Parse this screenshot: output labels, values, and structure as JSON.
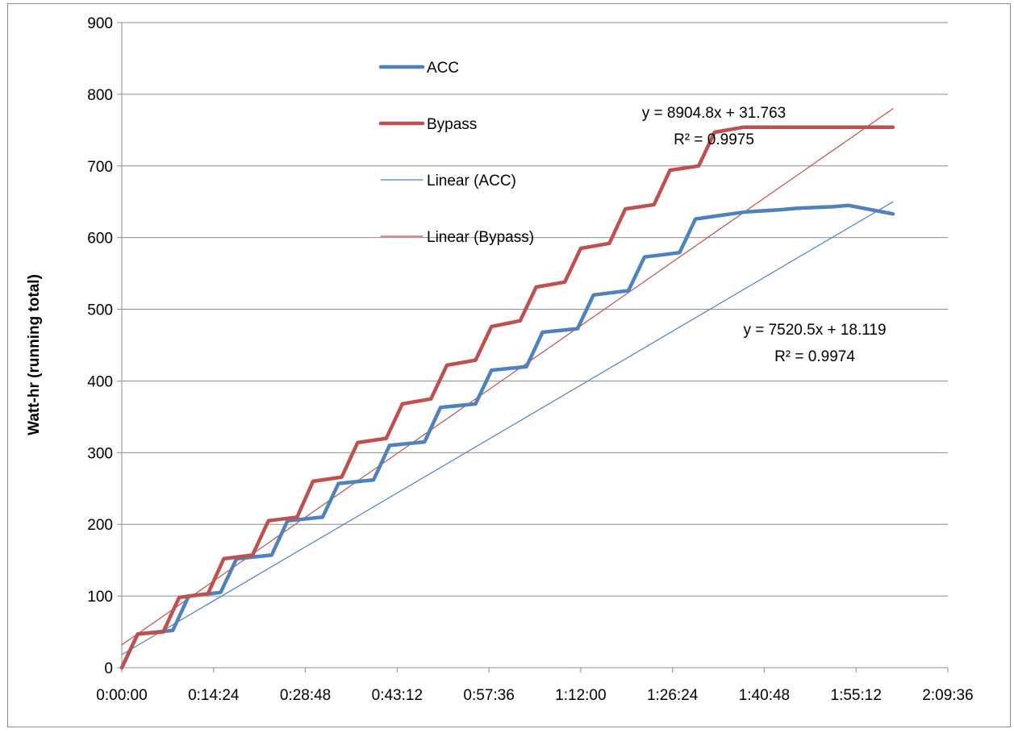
{
  "chart_data": {
    "type": "line",
    "title": "",
    "xlabel": "",
    "ylabel": "Watt-hr (running total)",
    "xlim": [
      "0:00:00",
      "2:09:36"
    ],
    "ylim": [
      0,
      900
    ],
    "x_ticks": [
      "0:00:00",
      "0:14:24",
      "0:28:48",
      "0:43:12",
      "0:57:36",
      "1:12:00",
      "1:26:24",
      "1:40:48",
      "1:55:12",
      "2:09:36"
    ],
    "y_ticks": [
      0,
      100,
      200,
      300,
      400,
      500,
      600,
      700,
      800,
      900
    ],
    "grid": "horizontal",
    "legend_position": "upper-left-inside",
    "series": [
      {
        "name": "ACC",
        "color": "#4f81bd",
        "x": [
          "0:00:00",
          "0:02:30",
          "0:08:00",
          "0:10:30",
          "0:15:30",
          "0:18:00",
          "0:23:30",
          "0:26:00",
          "0:31:30",
          "0:34:00",
          "0:39:30",
          "0:42:00",
          "0:47:30",
          "0:50:00",
          "0:55:30",
          "0:58:00",
          "1:03:30",
          "1:06:00",
          "1:11:30",
          "1:14:00",
          "1:19:30",
          "1:22:00",
          "1:27:30",
          "1:30:00",
          "1:35:30",
          "1:38:00",
          "1:43:30",
          "1:46:00",
          "1:51:30",
          "1:54:00",
          "2:01:00"
        ],
        "values": [
          0,
          47,
          52,
          100,
          105,
          152,
          157,
          205,
          210,
          257,
          262,
          310,
          315,
          363,
          368,
          415,
          420,
          468,
          473,
          520,
          526,
          573,
          579,
          626,
          633,
          636,
          639,
          641,
          643,
          645,
          633
        ]
      },
      {
        "name": "Bypass",
        "color": "#c0504d",
        "x": [
          "0:00:00",
          "0:02:30",
          "0:06:30",
          "0:09:00",
          "0:13:30",
          "0:16:00",
          "0:20:30",
          "0:23:00",
          "0:27:30",
          "0:30:00",
          "0:34:30",
          "0:37:00",
          "0:41:30",
          "0:44:00",
          "0:48:30",
          "0:51:00",
          "0:55:30",
          "0:58:00",
          "1:02:30",
          "1:05:00",
          "1:09:30",
          "1:12:00",
          "1:16:30",
          "1:19:00",
          "1:23:30",
          "1:26:00",
          "1:30:30",
          "1:33:00",
          "1:37:30",
          "1:40:00",
          "1:44:30",
          "1:47:00",
          "1:51:30",
          "1:54:00",
          "2:01:00"
        ],
        "values": [
          0,
          47,
          50,
          98,
          103,
          152,
          157,
          205,
          210,
          260,
          266,
          314,
          320,
          368,
          375,
          422,
          429,
          476,
          484,
          531,
          538,
          585,
          592,
          640,
          646,
          694,
          700,
          747,
          754,
          754,
          754,
          754,
          754,
          754,
          754
        ]
      },
      {
        "name": "Linear (ACC)",
        "color": "#4f81bd",
        "trend": {
          "slope": 7520.5,
          "intercept": 18.119,
          "r2": 0.9974
        },
        "x": [
          "0:00:00",
          "2:01:00"
        ],
        "values": [
          18.1,
          650.0
        ]
      },
      {
        "name": "Linear (Bypass)",
        "color": "#c0504d",
        "trend": {
          "slope": 8904.8,
          "intercept": 31.763,
          "r2": 0.9975
        },
        "x": [
          "0:00:00",
          "2:01:00"
        ],
        "values": [
          31.8,
          780.0
        ]
      }
    ],
    "annotations": {
      "bypass_equation": "y = 8904.8x + 31.763",
      "bypass_r2": "R² = 0.9975",
      "acc_equation": "y = 7520.5x + 18.119",
      "acc_r2": "R² = 0.9974"
    }
  }
}
